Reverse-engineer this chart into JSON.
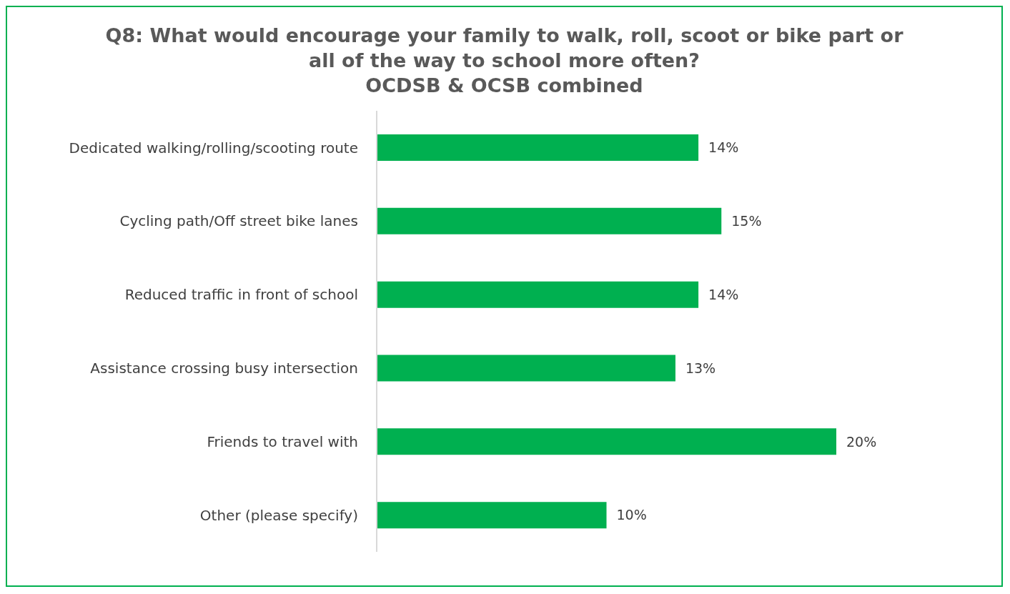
{
  "chart_data": {
    "type": "bar",
    "orientation": "horizontal",
    "title": "Q8: What would encourage your family to walk, roll, scoot or bike part or all of the way to school more often?",
    "subtitle": "OCDSB & OCSB combined",
    "categories": [
      "Dedicated walking/rolling/scooting route",
      "Cycling path/Off street bike lanes",
      "Reduced traffic in front of school",
      "Assistance crossing busy intersection",
      "Friends to travel with",
      "Other (please specify)"
    ],
    "values": [
      14,
      15,
      14,
      13,
      20,
      10
    ],
    "value_labels": [
      "14%",
      "15%",
      "14%",
      "13%",
      "20%",
      "10%"
    ],
    "color": "#00b050",
    "tick_labels": "y",
    "grid": false,
    "legend": false
  }
}
